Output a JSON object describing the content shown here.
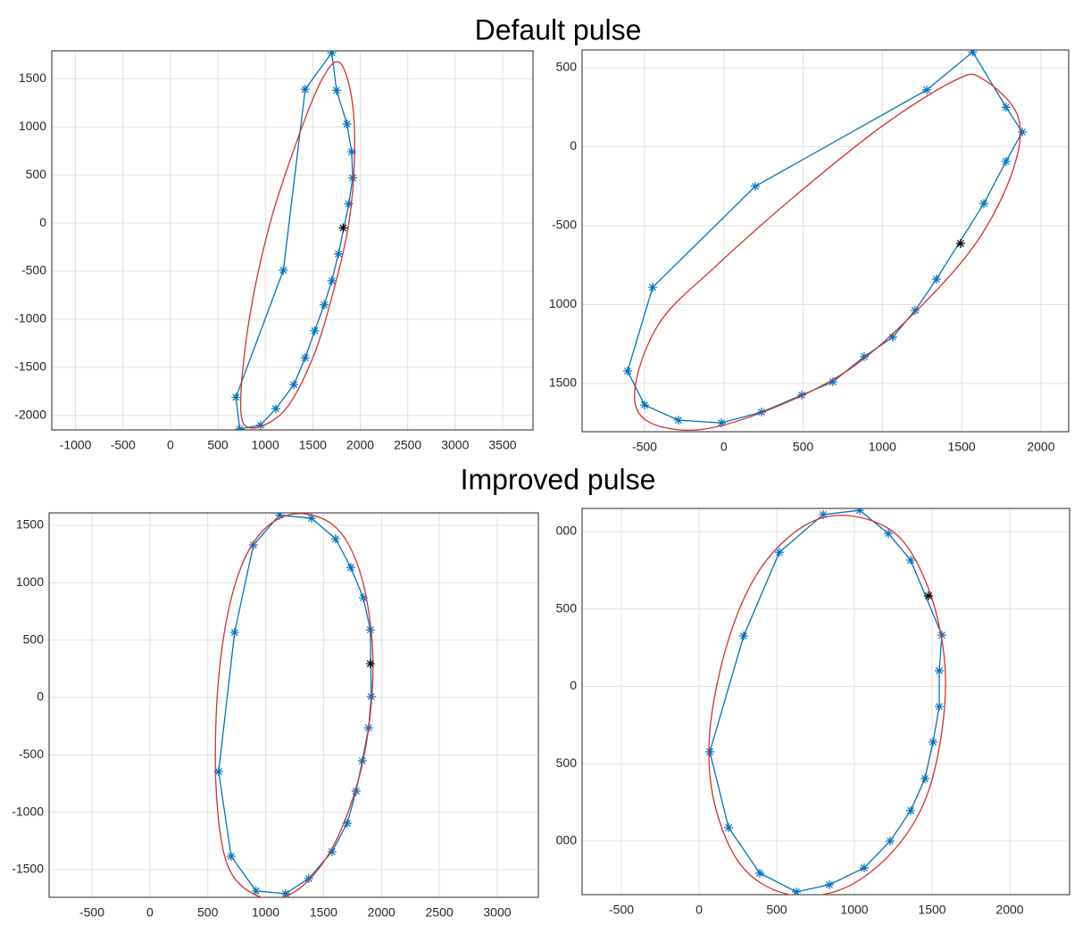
{
  "headings": [
    "Default pulse",
    "Improved pulse"
  ],
  "chart_data": [
    {
      "type": "line",
      "grid": true,
      "xlim": [
        -1250,
        3820
      ],
      "ylim": [
        -2150,
        1790
      ],
      "xticks": [
        -1000,
        -500,
        0,
        500,
        1000,
        1500,
        2000,
        2500,
        3000,
        3500
      ],
      "yticks": [
        -2000,
        -1500,
        -1000,
        -500,
        0,
        500,
        1000,
        1500
      ],
      "series": [
        {
          "color": "#0072bd",
          "marker": "*",
          "closed": true,
          "x": [
            1700,
            1750,
            1860,
            1910,
            1920,
            1880,
            1770,
            1700,
            1620,
            1520,
            1420,
            1300,
            1110,
            950,
            730,
            690,
            1190,
            1420
          ],
          "values": [
            1770,
            1380,
            1030,
            740,
            470,
            200,
            -320,
            -600,
            -850,
            -1120,
            -1400,
            -1680,
            -1930,
            -2100,
            -2140,
            -1810,
            -490,
            1390
          ]
        },
        {
          "color": "#d62f2f",
          "smooth": true,
          "closed": true,
          "x": [
            1780,
            1910,
            1940,
            1880,
            1720,
            1500,
            1200,
            850,
            740,
            830,
            1050,
            1350,
            1600
          ],
          "values": [
            1670,
            1300,
            700,
            0,
            -700,
            -1400,
            -1950,
            -2130,
            -1900,
            -1000,
            0,
            900,
            1500
          ]
        },
        {
          "color": "#000000",
          "marker": "*",
          "x": [
            1820
          ],
          "values": [
            -50
          ]
        }
      ]
    },
    {
      "type": "line",
      "grid": true,
      "xlim": [
        -894,
        2175
      ],
      "ylim": [
        -1805,
        613
      ],
      "xticks": [
        -500,
        0,
        500,
        1000,
        1500,
        2000
      ],
      "yticks": [
        {
          "value": -1500,
          "label": "1500"
        },
        {
          "value": -1000,
          "label": "1000"
        },
        -500,
        0,
        500
      ],
      "series": [
        {
          "color": "#0072bd",
          "marker": "*",
          "closed": true,
          "x": [
            1570,
            1780,
            1882,
            1780,
            1640,
            1341,
            1206,
            1065,
            885,
            688,
            491,
            238,
            -16,
            -286,
            -500,
            -607,
            -449,
            198,
            1280
          ],
          "values": [
            600,
            250,
            93,
            -93,
            -360,
            -839,
            -1037,
            -1206,
            -1330,
            -1489,
            -1573,
            -1681,
            -1749,
            -1732,
            -1636,
            -1421,
            -890,
            -251,
            360
          ]
        },
        {
          "color": "#d62f2f",
          "smooth": true,
          "closed": true,
          "x": [
            1628,
            1854,
            1825,
            1600,
            1234,
            784,
            277,
            -173,
            -500,
            -556,
            -399,
            -61,
            446,
            1009,
            1459
          ],
          "values": [
            432,
            195,
            -144,
            -596,
            -1020,
            -1415,
            -1669,
            -1794,
            -1726,
            -1500,
            -1105,
            -766,
            -314,
            138,
            421
          ]
        },
        {
          "color": "#000000",
          "marker": "*",
          "x": [
            1493
          ],
          "values": [
            -613
          ]
        }
      ]
    },
    {
      "type": "line",
      "grid": true,
      "xlim": [
        -870,
        3355
      ],
      "ylim": [
        -1741,
        1609
      ],
      "xticks": [
        -500,
        0,
        500,
        1000,
        1500,
        2000,
        2500,
        3000
      ],
      "yticks": [
        -1500,
        -1000,
        -500,
        0,
        500,
        1000,
        1500
      ],
      "series": [
        {
          "color": "#0072bd",
          "marker": "*",
          "closed": true,
          "x": [
            1120,
            1396,
            1604,
            1735,
            1843,
            1904,
            1912,
            1889,
            1835,
            1781,
            1704,
            1573,
            1372,
            1172,
            917,
            702,
            594,
            732,
            894
          ],
          "values": [
            1590,
            1562,
            1383,
            1134,
            870,
            590,
            8,
            -264,
            -552,
            -816,
            -1096,
            -1344,
            -1577,
            -1709,
            -1686,
            -1383,
            -645,
            567,
            1329
          ]
        },
        {
          "color": "#d62f2f",
          "smooth": true,
          "closed": true,
          "x": [
            1249,
            1596,
            1812,
            1920,
            1904,
            1789,
            1557,
            1249,
            941,
            671,
            571,
            594,
            725,
            941
          ],
          "values": [
            1601,
            1492,
            1103,
            482,
            -140,
            -761,
            -1344,
            -1694,
            -1733,
            -1461,
            -761,
            171,
            948,
            1414
          ]
        },
        {
          "color": "#000000",
          "marker": "*",
          "x": [
            1904
          ],
          "values": [
            295
          ]
        }
      ]
    },
    {
      "type": "line",
      "grid": true,
      "xlim": [
        -753,
        2385
      ],
      "ylim": [
        -1346,
        1150
      ],
      "xticks": [
        -500,
        0,
        500,
        1000,
        1500,
        2000
      ],
      "yticks": [
        {
          "value": -1000,
          "label": "000"
        },
        {
          "value": -500,
          "label": "500"
        },
        0,
        500,
        {
          "value": 1000,
          "label": "000"
        }
      ],
      "series": [
        {
          "color": "#0072bd",
          "marker": "*",
          "closed": true,
          "x": [
            799,
            1034,
            1218,
            1362,
            1563,
            1546,
            1546,
            1506,
            1454,
            1362,
            1230,
            1063,
            839,
            626,
            391,
            190,
            69,
            287,
            517
          ],
          "values": [
            1110,
            1138,
            988,
            816,
            331,
            101,
            -130,
            -360,
            -596,
            -803,
            -1000,
            -1173,
            -1282,
            -1328,
            -1207,
            -913,
            -423,
            326,
            867
          ]
        },
        {
          "color": "#d62f2f",
          "smooth": true,
          "closed": true,
          "x": [
            960,
            1276,
            1477,
            1580,
            1563,
            1448,
            1218,
            902,
            557,
            270,
            98,
            69,
            184,
            385,
            672
          ],
          "values": [
            1104,
            977,
            631,
            170,
            -291,
            -752,
            -1098,
            -1317,
            -1340,
            -1156,
            -752,
            -291,
            285,
            746,
            1035
          ]
        },
        {
          "color": "#000000",
          "marker": "*",
          "x": [
            1477
          ],
          "values": [
            585
          ]
        }
      ]
    }
  ]
}
